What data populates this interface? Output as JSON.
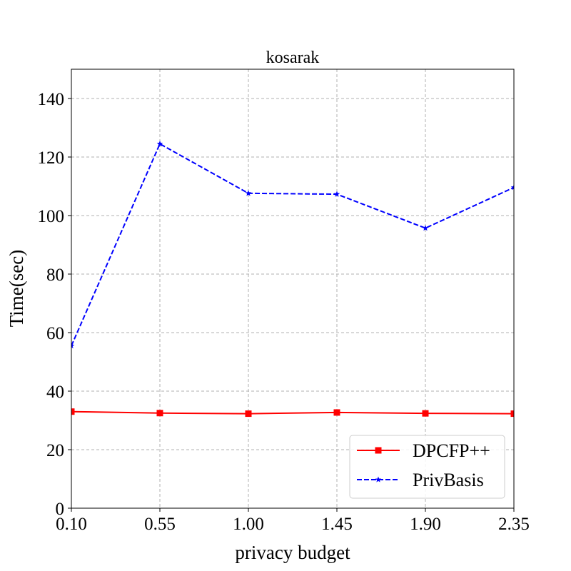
{
  "chart_data": {
    "type": "line",
    "title": "kosarak",
    "xlabel": "privacy budget",
    "ylabel": "Time(sec)",
    "x": [
      0.1,
      0.55,
      1.0,
      1.45,
      1.9,
      2.35
    ],
    "x_tick_labels": [
      "0.10",
      "0.55",
      "1.00",
      "1.45",
      "1.90",
      "2.35"
    ],
    "xlim": [
      0.1,
      2.35
    ],
    "ylim": [
      0,
      150
    ],
    "y_ticks": [
      0,
      20,
      40,
      60,
      80,
      100,
      120,
      140
    ],
    "grid": true,
    "legend_position": "bottom-right",
    "series": [
      {
        "name": "DPCFP++",
        "values": [
          33.0,
          32.5,
          32.3,
          32.7,
          32.4,
          32.3
        ],
        "color": "#ff0000",
        "line": "solid",
        "marker": "square"
      },
      {
        "name": "PrivBasis",
        "values": [
          55.5,
          124.5,
          107.6,
          107.3,
          95.7,
          109.6
        ],
        "color": "#0000ff",
        "line": "dashed",
        "marker": "star"
      }
    ]
  }
}
